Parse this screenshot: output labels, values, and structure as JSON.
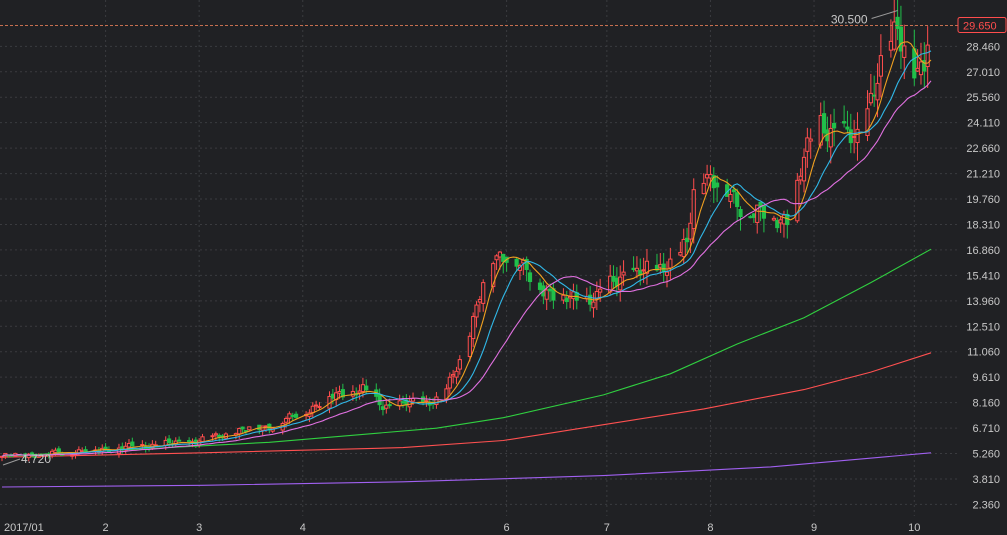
{
  "chart_data": {
    "type": "candlestick",
    "grid": true,
    "y_axis": {
      "position": "right",
      "ticks": [
        "28.460",
        "27.010",
        "25.560",
        "24.110",
        "22.660",
        "21.210",
        "19.760",
        "18.310",
        "16.860",
        "15.410",
        "13.960",
        "12.510",
        "11.060",
        "9.610",
        "8.160",
        "6.710",
        "5.260",
        "3.810",
        "2.360"
      ],
      "range": [
        1.7,
        31.1
      ]
    },
    "x_axis": {
      "ticks": [
        {
          "label": "2017/01",
          "day": 0
        },
        {
          "label": "2",
          "day": 31
        },
        {
          "label": "3",
          "day": 59
        },
        {
          "label": "4",
          "day": 90
        },
        {
          "label": "6",
          "day": 151
        },
        {
          "label": "7",
          "day": 181
        },
        {
          "label": "8",
          "day": 212
        },
        {
          "label": "9",
          "day": 243
        },
        {
          "label": "10",
          "day": 273
        }
      ],
      "range": [
        0,
        278
      ]
    },
    "current_price": "29.650",
    "max_label": "30.500",
    "min_label": "4.720",
    "colors": {
      "up": "#ff4d4d",
      "down": "#20c04a",
      "ma5": "#f0a020",
      "ma10": "#30b8e8",
      "ma20": "#e070e0",
      "ma60": "#30d040",
      "ma120": "#ff5050",
      "ma250": "#a060f0",
      "price_line": "#c87050"
    },
    "keypoints": [
      [
        0,
        5.1
      ],
      [
        14,
        5.25
      ],
      [
        31,
        5.5
      ],
      [
        45,
        5.75
      ],
      [
        55,
        5.9
      ],
      [
        62,
        6.1
      ],
      [
        72,
        6.6
      ],
      [
        82,
        6.9
      ],
      [
        90,
        7.6
      ],
      [
        100,
        8.6
      ],
      [
        108,
        8.9
      ],
      [
        114,
        8.0
      ],
      [
        122,
        8.1
      ],
      [
        132,
        8.4
      ],
      [
        138,
        11.0
      ],
      [
        146,
        16.2
      ],
      [
        152,
        16.8
      ],
      [
        158,
        15.2
      ],
      [
        168,
        14.0
      ],
      [
        178,
        14.2
      ],
      [
        186,
        15.5
      ],
      [
        196,
        15.7
      ],
      [
        205,
        17.0
      ],
      [
        208,
        21.8
      ],
      [
        212,
        21.0
      ],
      [
        220,
        19.5
      ],
      [
        230,
        18.6
      ],
      [
        236,
        18.8
      ],
      [
        240,
        22.0
      ],
      [
        245,
        24.3
      ],
      [
        250,
        23.2
      ],
      [
        256,
        23.4
      ],
      [
        262,
        26.5
      ],
      [
        268,
        29.8
      ],
      [
        270,
        28.7
      ],
      [
        274,
        26.5
      ],
      [
        276,
        27.2
      ],
      [
        278,
        29.65
      ]
    ],
    "ma_long": {
      "ma60": [
        [
          0,
          5.1
        ],
        [
          40,
          5.5
        ],
        [
          80,
          5.9
        ],
        [
          130,
          6.7
        ],
        [
          150,
          7.3
        ],
        [
          180,
          8.6
        ],
        [
          200,
          9.8
        ],
        [
          220,
          11.5
        ],
        [
          240,
          13.0
        ],
        [
          260,
          15.0
        ],
        [
          278,
          16.9
        ]
      ],
      "ma120": [
        [
          0,
          5.05
        ],
        [
          60,
          5.3
        ],
        [
          120,
          5.6
        ],
        [
          150,
          6.0
        ],
        [
          180,
          6.9
        ],
        [
          210,
          7.8
        ],
        [
          240,
          8.9
        ],
        [
          260,
          9.9
        ],
        [
          278,
          11.0
        ]
      ],
      "ma250": [
        [
          0,
          3.35
        ],
        [
          60,
          3.45
        ],
        [
          120,
          3.65
        ],
        [
          180,
          4.0
        ],
        [
          230,
          4.5
        ],
        [
          278,
          5.3
        ]
      ]
    }
  }
}
